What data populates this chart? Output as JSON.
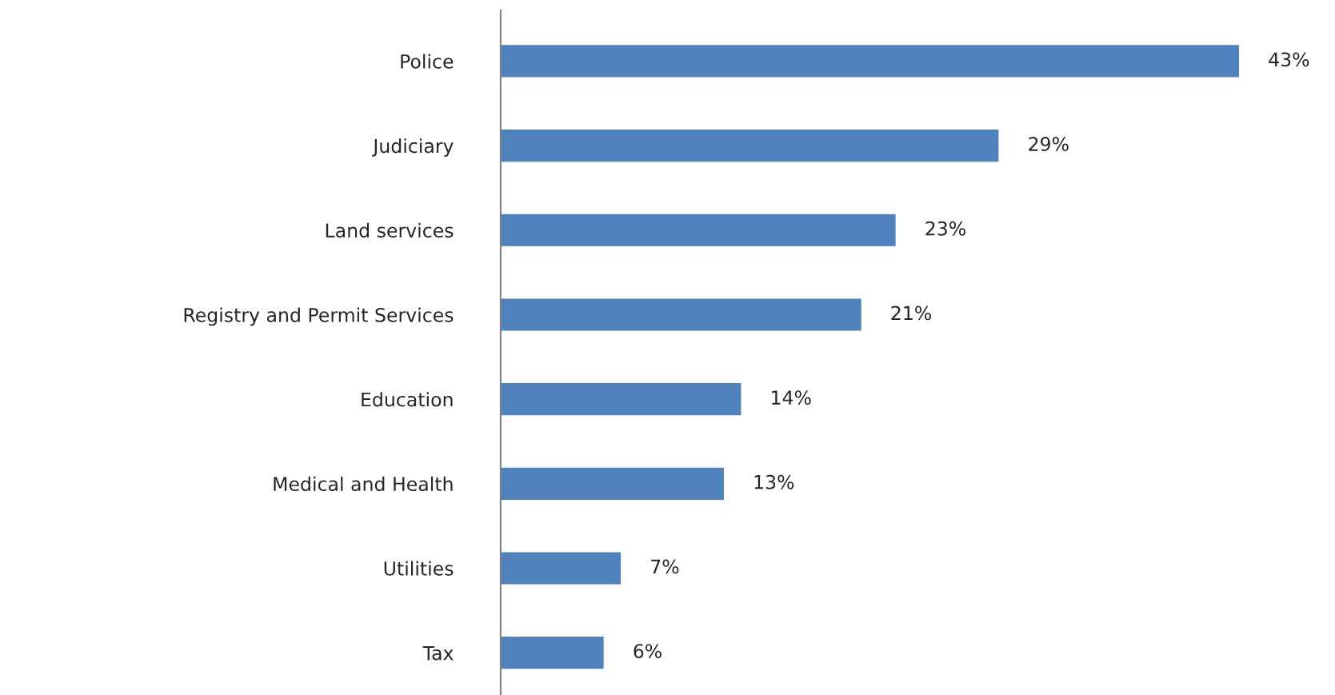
{
  "chart_data": {
    "type": "bar",
    "orientation": "horizontal",
    "categories": [
      "Police",
      "Judiciary",
      "Land services",
      "Registry and Permit Services",
      "Education",
      "Medical and Health",
      "Utilities",
      "Tax"
    ],
    "values": [
      43,
      29,
      23,
      21,
      14,
      13,
      7,
      6
    ],
    "value_labels": [
      "43%",
      "29%",
      "23%",
      "21%",
      "14%",
      "13%",
      "7%",
      "6%"
    ],
    "color": "#4f81bd",
    "grid": false,
    "legend": false
  }
}
